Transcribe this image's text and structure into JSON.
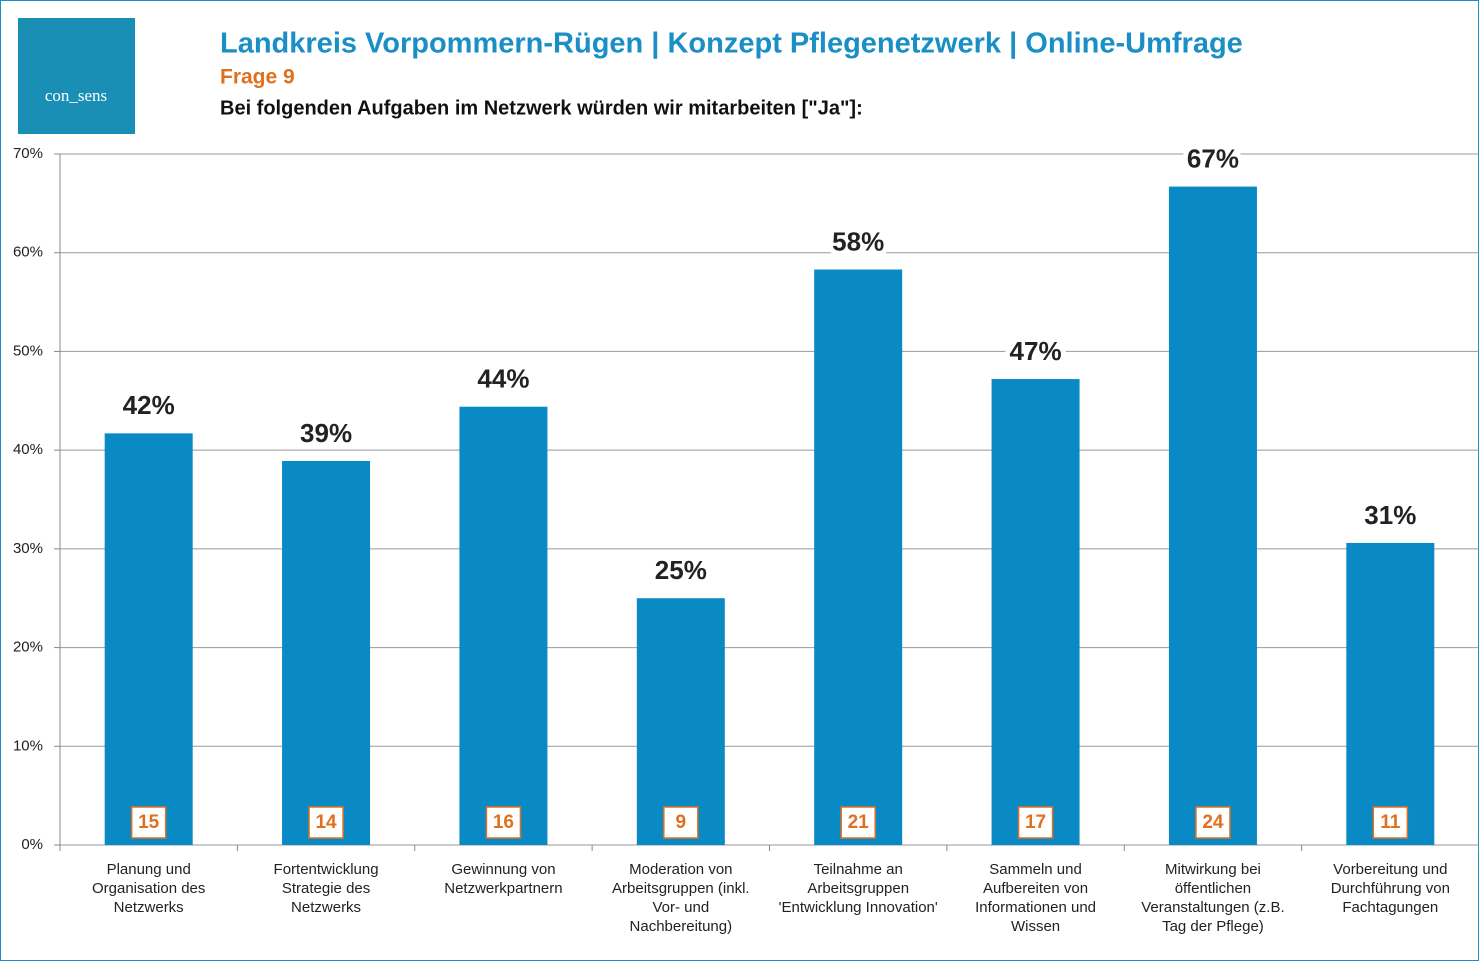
{
  "chart_data": {
    "type": "bar",
    "logo": "con_sens",
    "title": "Landkreis Vorpommern-Rügen | Konzept Pflegenetzwerk | Online-Umfrage",
    "subtitle": "Frage 9",
    "question": "Bei folgenden Aufgaben im Netzwerk würden wir mitarbeiten [\"Ja\"]:",
    "categories": [
      "Planung und\nOrganisation des\nNetzwerks",
      "Fortentwicklung\nStrategie des\nNetzwerks",
      "Gewinnung von\nNetzwerkpartnern",
      "Moderation von\nArbeitsgruppen (inkl.\nVor- und\nNachbereitung)",
      "Teilnahme an\nArbeitsgruppen\n'Entwicklung Innovation'",
      "Sammeln und\nAufbereiten von\nInformationen und\nWissen",
      "Mitwirkung bei\nöffentlichen\nVeranstaltungen (z.B.\nTag der Pflege)",
      "Vorbereitung und\nDurchführung von\nFachtagungen"
    ],
    "values": [
      41.7,
      38.9,
      44.4,
      25,
      58.3,
      47.2,
      66.7,
      30.6
    ],
    "value_labels": [
      "42%",
      "39%",
      "44%",
      "25%",
      "58%",
      "47%",
      "67%",
      "31%"
    ],
    "counts": [
      15,
      14,
      16,
      9,
      21,
      17,
      24,
      11
    ],
    "color": "#0a8ac4",
    "ylim": [
      0,
      70
    ],
    "yticks": [
      {
        "value": 0,
        "label": "0%"
      },
      {
        "value": 10,
        "label": "10%"
      },
      {
        "value": 20,
        "label": "20%"
      },
      {
        "value": 30,
        "label": "30%"
      },
      {
        "value": 40,
        "label": "40%"
      },
      {
        "value": 50,
        "label": "50%"
      },
      {
        "value": 60,
        "label": "60%"
      },
      {
        "value": 70,
        "label": "70%"
      }
    ],
    "grid": true
  }
}
